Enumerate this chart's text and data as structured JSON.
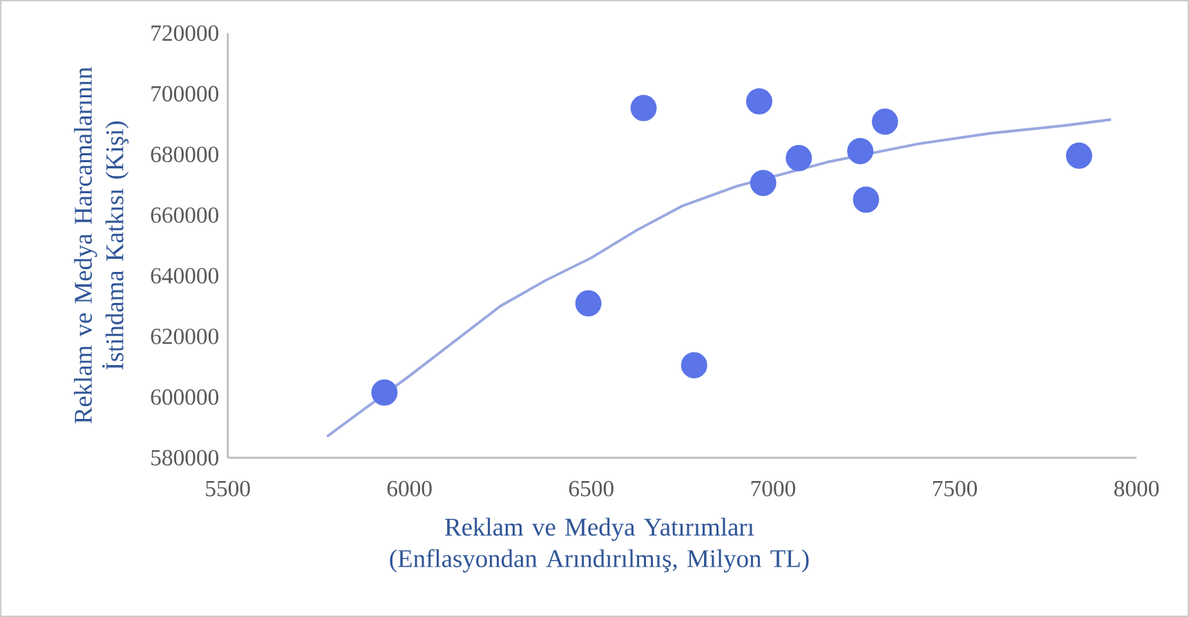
{
  "chart_data": {
    "type": "scatter",
    "xlabel": "Reklam ve Medya Yatırımları (Enflasyondan Arındırılmış, Milyon TL)",
    "ylabel": "Reklam ve Medya Harcamalarının İstihdama Katkısı (Kişi)",
    "xlim": [
      5500,
      8000
    ],
    "ylim": [
      580000,
      720000
    ],
    "xticks": [
      5500,
      6000,
      6500,
      7000,
      7500,
      8000
    ],
    "yticks": [
      580000,
      600000,
      620000,
      640000,
      660000,
      680000,
      700000,
      720000
    ],
    "grid": false,
    "marker": "circle",
    "series": [
      {
        "color": "#5b74e8",
        "x": [
          5931,
          6492,
          6644,
          6783,
          6962,
          6973,
          7071,
          7240,
          7256,
          7308,
          7842
        ],
        "values": [
          601500,
          630900,
          695300,
          610500,
          697500,
          670600,
          678800,
          681100,
          665100,
          690800,
          679600
        ]
      },
      {
        "type": "line",
        "color": "#9aa8e0",
        "line_style": "solid",
        "marker": "none",
        "x": [
          5773,
          6000,
          6125,
          6250,
          6375,
          6500,
          6625,
          6750,
          6900,
          7150,
          7400,
          7600,
          7800,
          7930
        ],
        "values": [
          587000,
          607000,
          618500,
          630000,
          638500,
          645900,
          655000,
          663000,
          669500,
          677500,
          683500,
          687000,
          689500,
          691500
        ]
      }
    ]
  }
}
